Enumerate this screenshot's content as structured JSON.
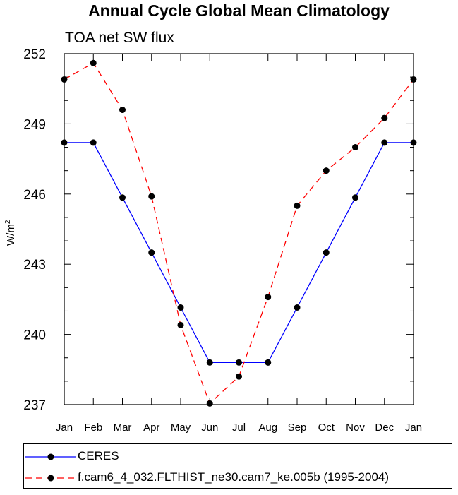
{
  "chart_data": {
    "type": "line",
    "title": "Annual Cycle Global Mean Climatology",
    "subtitle": "TOA net SW flux",
    "ylabel_base": "W/m",
    "ylabel_sup": "2",
    "xlabel": "",
    "categories": [
      "Jan",
      "Feb",
      "Mar",
      "Apr",
      "May",
      "Jun",
      "Jul",
      "Aug",
      "Sep",
      "Oct",
      "Nov",
      "Dec",
      "Jan"
    ],
    "ylim": [
      237,
      252
    ],
    "yticks": [
      237,
      240,
      243,
      246,
      249,
      252
    ],
    "series": [
      {
        "name": "CERES",
        "color": "#0000ff",
        "line_style": "solid",
        "marker": "filled-circle",
        "values": [
          248.2,
          248.2,
          245.85,
          243.5,
          241.15,
          238.8,
          238.8,
          238.8,
          241.15,
          243.5,
          245.85,
          248.2,
          248.2
        ]
      },
      {
        "name": "f.cam6_4_032.FLTHIST_ne30.cam7_ke.005b (1995-2004)",
        "color": "#ff0000",
        "line_style": "dashed",
        "marker": "filled-circle",
        "values": [
          250.9,
          251.6,
          249.6,
          245.9,
          240.4,
          237.05,
          238.2,
          241.6,
          245.5,
          247.0,
          248.0,
          249.25,
          250.9
        ]
      }
    ],
    "grid": false,
    "legend_position": "bottom"
  }
}
